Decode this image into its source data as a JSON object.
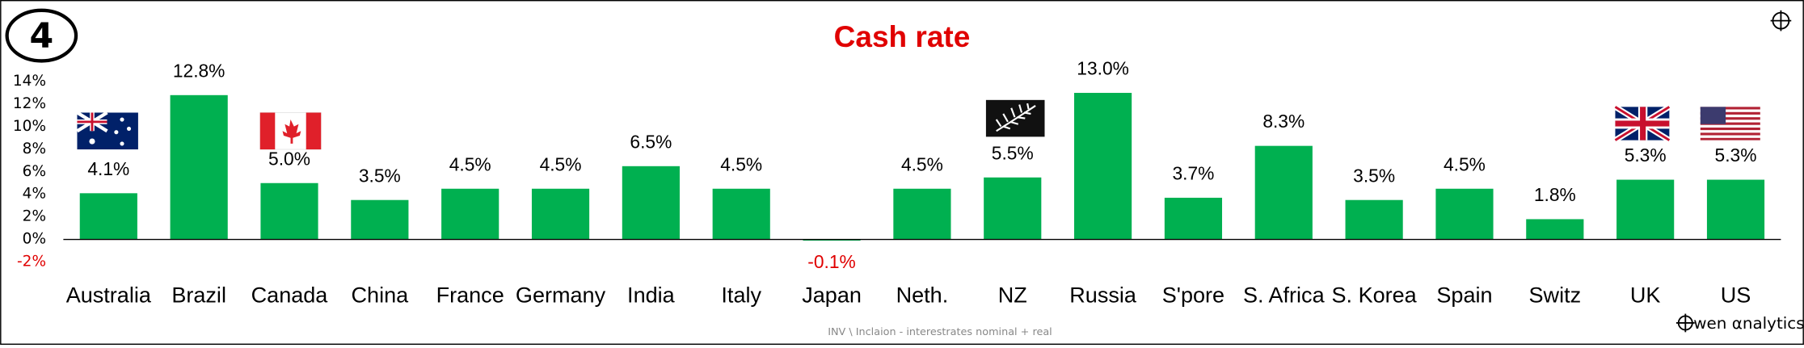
{
  "badge": "4",
  "footer": "INV \\ Inclaion - interestrates nominal + real",
  "logo": "wen αnalytics",
  "chart_data": {
    "type": "bar",
    "title": "Cash rate",
    "categories": [
      "Australia",
      "Brazil",
      "Canada",
      "China",
      "France",
      "Germany",
      "India",
      "Italy",
      "Japan",
      "Neth.",
      "NZ",
      "Russia",
      "S'pore",
      "S. Africa",
      "S. Korea",
      "Spain",
      "Switz",
      "UK",
      "US"
    ],
    "values": [
      4.1,
      12.8,
      5.0,
      3.5,
      4.5,
      4.5,
      6.5,
      4.5,
      -0.1,
      4.5,
      5.5,
      13.0,
      3.7,
      8.3,
      3.5,
      4.5,
      1.8,
      5.3,
      5.3
    ],
    "value_labels": [
      "4.1%",
      "12.8%",
      "5.0%",
      "3.5%",
      "4.5%",
      "4.5%",
      "6.5%",
      "4.5%",
      "-0.1%",
      "4.5%",
      "5.5%",
      "13.0%",
      "3.7%",
      "8.3%",
      "3.5%",
      "4.5%",
      "1.8%",
      "5.3%",
      "5.3%"
    ],
    "color": "#00b050",
    "negative_color": "#e00000",
    "ylim": [
      -2,
      14
    ],
    "yticks": [
      {
        "value": -2,
        "label": "-2%"
      },
      {
        "value": 0,
        "label": "0%"
      },
      {
        "value": 2,
        "label": "2%"
      },
      {
        "value": 4,
        "label": "4%"
      },
      {
        "value": 6,
        "label": "6%"
      },
      {
        "value": 8,
        "label": "8%"
      },
      {
        "value": 10,
        "label": "10%"
      },
      {
        "value": 12,
        "label": "12%"
      },
      {
        "value": 14,
        "label": "14%"
      }
    ],
    "grid": false
  }
}
